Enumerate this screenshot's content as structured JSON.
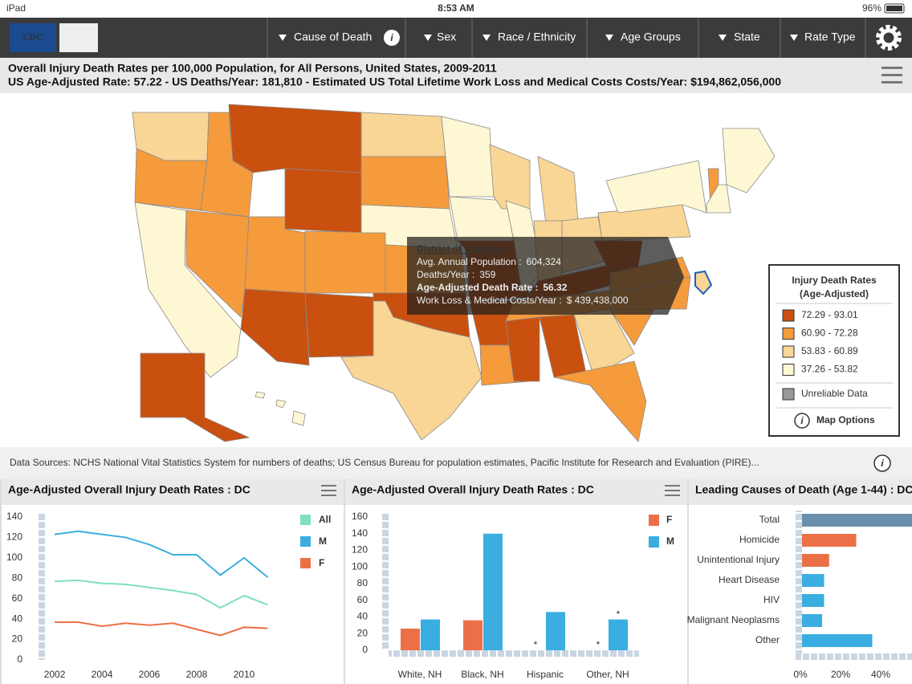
{
  "status_bar": {
    "device": "iPad",
    "time": "8:53 AM",
    "battery": "96%"
  },
  "nav": {
    "logo": "CDC",
    "menus": [
      "Cause of Death",
      "Sex",
      "Race / Ethnicity",
      "Age Groups",
      "State",
      "Rate Type"
    ]
  },
  "header": {
    "title": "Overall Injury Death Rates per 100,000 Population, for All Persons, United States, 2009-2011",
    "subtitle": "US Age-Adjusted Rate: 57.22 - US Deaths/Year: 181,810 - Estimated US Total Lifetime Work Loss and Medical Costs Costs/Year: $194,862,056,000"
  },
  "tooltip": {
    "title": "District of Columbia",
    "rows": [
      {
        "label": "Avg. Annual Population :",
        "value": "604,324"
      },
      {
        "label": "Deaths/Year :",
        "value": "359"
      },
      {
        "label": "Age-Adjusted Death Rate :",
        "value": "56.32"
      },
      {
        "label": "Work Loss & Medical Costs/Year :",
        "value": "$ 439,438,000"
      }
    ]
  },
  "legend": {
    "title": "Injury Death Rates",
    "subtitle": "(Age-Adjusted)",
    "items": [
      {
        "label": "72.29 - 93.01",
        "color": "#c9500f"
      },
      {
        "label": "60.90 - 72.28",
        "color": "#f59b3c"
      },
      {
        "label": "53.83 - 60.89",
        "color": "#f9d596"
      },
      {
        "label": "37.26 - 53.82",
        "color": "#fdf8d3"
      }
    ],
    "unreliable": {
      "label": "Unreliable Data",
      "color": "#999999"
    },
    "options": "Map Options"
  },
  "data_sources": "Data Sources: NCHS National Vital Statistics System for numbers of deaths; US Census Bureau for population estimates, Pacific Institute for Research and Evaluation (PIRE)...",
  "panels": [
    {
      "title": "Age-Adjusted Overall Injury Death Rates : DC",
      "chart_data": {
        "type": "line",
        "x": [
          2002,
          2003,
          2004,
          2005,
          2006,
          2007,
          2008,
          2009,
          2010,
          2011
        ],
        "xlim": [
          2001.32,
          2011.9
        ],
        "xticks": [
          2002,
          2004,
          2006,
          2008,
          2010
        ],
        "ylim": [
          0,
          140
        ],
        "yticks": [
          0,
          20,
          40,
          60,
          80,
          100,
          120,
          140
        ],
        "series": [
          {
            "name": "All",
            "color": "#7ee0bf",
            "values": [
              77,
              78,
              75,
              74,
              71,
              68,
              64,
              51,
              63,
              54
            ]
          },
          {
            "name": "M",
            "color": "#3aaee0",
            "values": [
              123,
              126,
              123,
              120,
              113,
              103,
              103,
              83,
              100,
              81
            ]
          },
          {
            "name": "F",
            "color": "#ec7047",
            "values": [
              37,
              37,
              33,
              36,
              34,
              36,
              30,
              24,
              32,
              31
            ]
          }
        ]
      }
    },
    {
      "title": "Age-Adjusted Overall Injury Death Rates : DC",
      "chart_data": {
        "type": "bar",
        "categories": [
          "White, NH",
          "Black, NH",
          "Hispanic",
          "Other, NH"
        ],
        "ylim": [
          0,
          160
        ],
        "yticks": [
          0,
          20,
          40,
          60,
          80,
          100,
          120,
          140,
          160
        ],
        "series": [
          {
            "name": "F",
            "color": "#ec7047",
            "values": [
              26,
              36,
              null,
              null
            ],
            "value_labels": [
              null,
              null,
              "*",
              "*"
            ]
          },
          {
            "name": "M",
            "color": "#3aaee0",
            "values": [
              37,
              140,
              46,
              37
            ],
            "value_labels": [
              null,
              null,
              null,
              "*"
            ]
          }
        ]
      }
    },
    {
      "title": "Leading Causes of Death (Age 1-44) : DC",
      "chart_data": {
        "type": "hbar",
        "categories": [
          "Total",
          "Homicide",
          "Unintentional Injury",
          "Heart Disease",
          "HIV",
          "Malignant Neoplasms",
          "Other"
        ],
        "values": [
          60,
          27,
          13.5,
          11,
          11,
          10,
          35
        ],
        "colors": [
          "#6a8fad",
          "#ec7047",
          "#ec7047",
          "#3aaee0",
          "#3aaee0",
          "#3aaee0",
          "#3aaee0"
        ],
        "xlim": [
          0,
          55.6
        ],
        "xticks": [
          {
            "value": 0,
            "label": "0%"
          },
          {
            "value": 20,
            "label": "20%"
          },
          {
            "value": 40,
            "label": "40%"
          }
        ]
      }
    }
  ]
}
